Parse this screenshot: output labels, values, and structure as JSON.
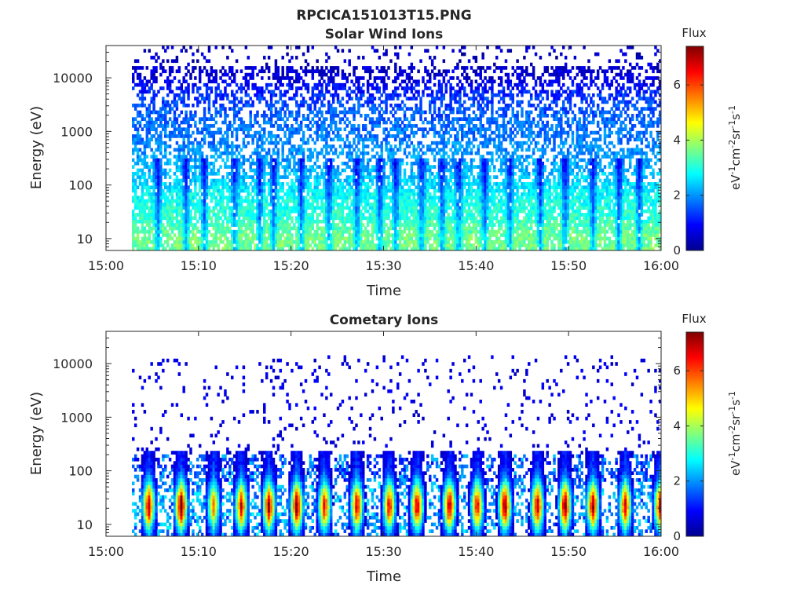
{
  "figure_title": "RPCICA151013T15.PNG",
  "chart_data": [
    {
      "type": "heatmap",
      "title": "Solar Wind Ions",
      "xlabel": "Time",
      "ylabel": "Energy (eV)",
      "x_ticks": [
        "15:00",
        "15:10",
        "15:20",
        "15:30",
        "15:40",
        "15:50",
        "16:00"
      ],
      "x_range_minutes": [
        0,
        60
      ],
      "y_scale": "log",
      "y_range": [
        6,
        40000
      ],
      "y_ticks": [
        "10",
        "100",
        "1000",
        "10000"
      ],
      "data_start_minute": 2.8,
      "colorbar": {
        "title": "Flux",
        "label": "eV-1cm-2sr-1s-1",
        "range": [
          0,
          7.4
        ],
        "ticks": [
          "0",
          "2",
          "4",
          "6"
        ],
        "colormap": "jet"
      },
      "profile": [
        {
          "energy": 7,
          "flux": 3.6
        },
        {
          "energy": 10,
          "flux": 3.6
        },
        {
          "energy": 16,
          "flux": 3.4
        },
        {
          "energy": 25,
          "flux": 3.1
        },
        {
          "energy": 40,
          "flux": 3.0
        },
        {
          "energy": 70,
          "flux": 2.8
        },
        {
          "energy": 110,
          "flux": 2.5
        },
        {
          "energy": 200,
          "flux": 2.2
        },
        {
          "energy": 400,
          "flux": 2.0
        },
        {
          "energy": 800,
          "flux": 1.8
        },
        {
          "energy": 1500,
          "flux": 1.7
        },
        {
          "energy": 3000,
          "flux": 1.5
        },
        {
          "energy": 6000,
          "flux": 1.1
        },
        {
          "energy": 10000,
          "flux": 0.6
        },
        {
          "energy": 15000,
          "flux": 0.5
        },
        {
          "energy": 30000,
          "flux": 0.4
        }
      ],
      "burst_minutes": [
        5.5,
        8.5,
        10.5,
        13.8,
        16.5,
        18.0,
        21.0,
        24.0,
        27.0,
        29.5,
        31.2,
        34.0,
        36.2,
        38.0,
        40.8,
        43.5,
        46.8,
        49.5,
        52.5,
        55.3,
        57.5
      ]
    },
    {
      "type": "heatmap",
      "title": "Cometary Ions",
      "xlabel": "Time",
      "ylabel": "Energy (eV)",
      "x_ticks": [
        "15:00",
        "15:10",
        "15:20",
        "15:30",
        "15:40",
        "15:50",
        "16:00"
      ],
      "x_range_minutes": [
        0,
        60
      ],
      "y_scale": "log",
      "y_range": [
        6,
        40000
      ],
      "y_ticks": [
        "10",
        "100",
        "1000",
        "10000"
      ],
      "data_start_minute": 2.8,
      "colorbar": {
        "title": "Flux",
        "label": "eV-1cm-2sr-1s-1",
        "range": [
          0,
          7.4
        ],
        "ticks": [
          "0",
          "2",
          "4",
          "6"
        ],
        "colormap": "jet"
      },
      "peaks": [
        {
          "minute": 4.5,
          "flux": 6.2
        },
        {
          "minute": 8.0,
          "flux": 6.8
        },
        {
          "minute": 11.5,
          "flux": 4.5
        },
        {
          "minute": 14.5,
          "flux": 5.8
        },
        {
          "minute": 17.5,
          "flux": 6.3
        },
        {
          "minute": 20.5,
          "flux": 6.6
        },
        {
          "minute": 23.5,
          "flux": 5.7
        },
        {
          "minute": 27.0,
          "flux": 6.0
        },
        {
          "minute": 30.5,
          "flux": 5.8
        },
        {
          "minute": 33.5,
          "flux": 6.2
        },
        {
          "minute": 37.0,
          "flux": 6.4
        },
        {
          "minute": 40.0,
          "flux": 5.8
        },
        {
          "minute": 43.0,
          "flux": 6.6
        },
        {
          "minute": 46.5,
          "flux": 6.2
        },
        {
          "minute": 49.5,
          "flux": 6.6
        },
        {
          "minute": 52.5,
          "flux": 6.3
        },
        {
          "minute": 56.0,
          "flux": 5.8
        },
        {
          "minute": 59.8,
          "flux": 6.2
        }
      ],
      "peak_energy_range": [
        10,
        50
      ],
      "background_energy_range": [
        100,
        10000
      ],
      "background_flux": 0.7
    }
  ]
}
